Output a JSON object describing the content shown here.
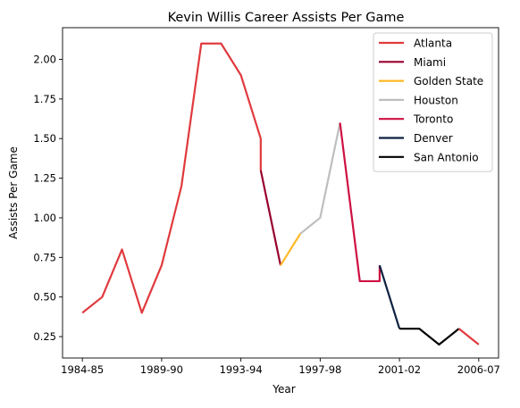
{
  "chart_data": {
    "type": "line",
    "title": "Kevin Willis Career Assists Per Game",
    "xlabel": "Year",
    "ylabel": "Assists Per Game",
    "x_tick_labels": [
      "1984-85",
      "1989-90",
      "1993-94",
      "1997-98",
      "2001-02",
      "2006-07"
    ],
    "x_tick_index": [
      0,
      4,
      8,
      12,
      16,
      20
    ],
    "ylim": [
      0.115,
      2.2
    ],
    "xlim": [
      -1,
      21
    ],
    "y_ticks": [
      0.25,
      0.5,
      0.75,
      1.0,
      1.25,
      1.5,
      1.75,
      2.0
    ],
    "y_tick_labels": [
      "0.25",
      "0.50",
      "0.75",
      "1.00",
      "1.25",
      "1.50",
      "1.75",
      "2.00"
    ],
    "legend_position": "top-right",
    "series": [
      {
        "name": "Atlanta",
        "color": "#e03a3e",
        "points": [
          [
            0,
            0.4
          ],
          [
            1,
            0.5
          ],
          [
            2,
            0.8
          ],
          [
            3,
            0.4
          ],
          [
            4,
            0.7
          ],
          [
            5,
            1.2
          ],
          [
            6,
            2.1
          ],
          [
            7,
            2.1
          ],
          [
            8,
            1.9
          ],
          [
            9,
            1.5
          ],
          [
            9,
            1.3
          ]
        ]
      },
      {
        "name": "Miami",
        "color": "#98002e",
        "points": [
          [
            9,
            1.3
          ],
          [
            10,
            0.7
          ]
        ]
      },
      {
        "name": "Golden State",
        "color": "#fdb927",
        "points": [
          [
            10,
            0.7
          ],
          [
            11,
            0.9
          ]
        ]
      },
      {
        "name": "Houston",
        "color": "#bebebe",
        "points": [
          [
            11,
            0.9
          ],
          [
            12,
            1.0
          ],
          [
            13,
            1.6
          ]
        ]
      },
      {
        "name": "Toronto",
        "color": "#ce1141",
        "points": [
          [
            13,
            1.6
          ],
          [
            14,
            0.6
          ],
          [
            15,
            0.6
          ],
          [
            15,
            0.7
          ]
        ]
      },
      {
        "name": "Denver",
        "color": "#0e2240",
        "points": [
          [
            15,
            0.7
          ],
          [
            16,
            0.3
          ]
        ]
      },
      {
        "name": "San Antonio",
        "color": "#000000",
        "points": [
          [
            16,
            0.3
          ],
          [
            17,
            0.3
          ],
          [
            18,
            0.2
          ],
          [
            19,
            0.3
          ]
        ]
      },
      {
        "name": "Atlanta",
        "color": "#e03a3e",
        "legend": false,
        "points": [
          [
            19,
            0.3
          ],
          [
            20,
            0.2
          ]
        ]
      }
    ]
  }
}
